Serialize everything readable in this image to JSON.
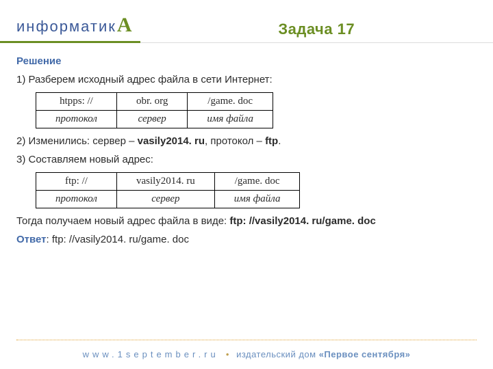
{
  "logo": {
    "main": "информатик",
    "cap": "А"
  },
  "task_title": "Задача 17",
  "heading": "Решение",
  "step1": "1) Разберем исходный адрес файла в сети Интернет:",
  "table1": {
    "row1": [
      "htpps: //",
      "obr. org",
      "/game. doc"
    ],
    "row2": [
      "протокол",
      "сервер",
      "имя файла"
    ]
  },
  "step2_prefix": "2) Изменились: сервер – ",
  "step2_server": "vasily2014. ru",
  "step2_mid": ",  протокол – ",
  "step2_proto": "ftp",
  "step2_suffix": ".",
  "step3": "3) Составляем новый адрес:",
  "table2": {
    "row1": [
      "ftp: //",
      "vasily2014. ru",
      "/game. doc"
    ],
    "row2": [
      "протокол",
      "сервер",
      "имя файла"
    ]
  },
  "conclusion_prefix": "Тогда получаем новый адрес файла в виде:   ",
  "conclusion_bold": "ftp: //vasily2014. ru/game. doc",
  "answer_label": "Ответ",
  "answer_text": ": ftp: //vasily2014. ru/game. doc",
  "footer": {
    "url": "www.1september.ru",
    "house_prefix": "издательский дом ",
    "house": "«Первое сентября»"
  }
}
